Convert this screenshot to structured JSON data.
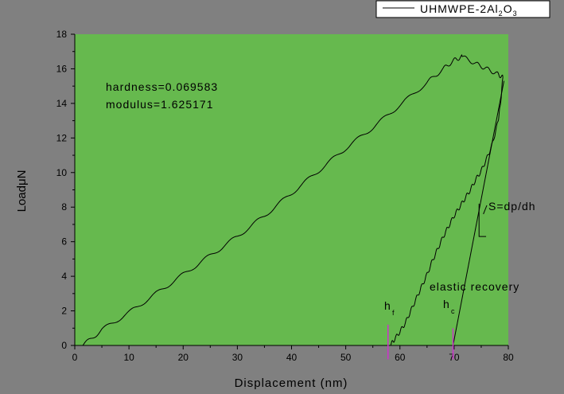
{
  "chart_data": {
    "type": "line",
    "title": "",
    "xlabel": "Displacement (nm)",
    "ylabel": "LoadμN",
    "xlim": [
      0,
      80
    ],
    "ylim": [
      0,
      18
    ],
    "x_ticks": [
      0,
      10,
      20,
      30,
      40,
      50,
      60,
      70,
      80
    ],
    "y_ticks": [
      0,
      2,
      4,
      6,
      8,
      10,
      12,
      14,
      16,
      18
    ],
    "grid": false,
    "legend_position": "top-right",
    "series": [
      {
        "name": "UHMWPE-2Al2O3",
        "loading": {
          "x": [
            1.5,
            5,
            10,
            15,
            20,
            25,
            30,
            35,
            40,
            45,
            50,
            55,
            60,
            65,
            68,
            70,
            71.5
          ],
          "y": [
            0,
            0.9,
            1.9,
            3.0,
            4.1,
            5.2,
            6.3,
            7.5,
            8.8,
            10.1,
            11.4,
            12.6,
            13.9,
            15.2,
            16.0,
            16.5,
            16.7
          ]
        },
        "hold": {
          "x": [
            71.5,
            74,
            76,
            78,
            79
          ],
          "y": [
            16.7,
            16.3,
            16.0,
            15.7,
            15.5
          ]
        },
        "unloading": {
          "x": [
            79,
            78.5,
            78,
            77,
            76,
            75,
            74,
            73,
            72,
            71,
            70,
            69,
            68,
            67,
            66,
            65,
            64,
            63,
            62,
            61,
            60,
            59,
            58.2
          ],
          "y": [
            15.5,
            13.8,
            12.8,
            11.6,
            10.8,
            10.1,
            9.6,
            9.0,
            8.5,
            8.0,
            7.5,
            6.9,
            6.3,
            5.6,
            4.9,
            4.1,
            3.4,
            2.7,
            2.0,
            1.3,
            0.8,
            0.35,
            0
          ]
        }
      }
    ],
    "tangent": {
      "x": [
        69.8,
        79.2
      ],
      "y": [
        0,
        15.3
      ]
    },
    "annotations": {
      "hardness": "hardness=0.069583",
      "modulus": "modulus=1.625171",
      "slope": "S=dp/dh",
      "recovery": "elastic recovery",
      "hf": "h",
      "hf_sub": "f",
      "hc": "h",
      "hc_sub": "c",
      "hf_value": 57.8,
      "hc_value": 69.8
    },
    "legend": {
      "text": "UHMWPE-2Al",
      "sub1": "2",
      "mid": "O",
      "sub2": "3"
    }
  },
  "colors": {
    "background": "#808080",
    "plot_area": "#66B94E",
    "curve": "#000000",
    "marker": "#CC33CC"
  }
}
